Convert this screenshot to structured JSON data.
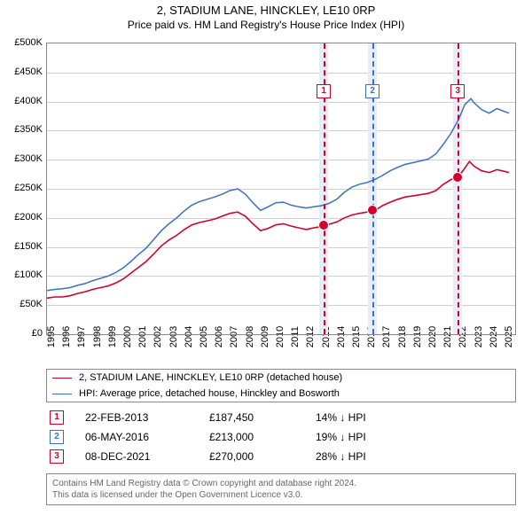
{
  "title": "2, STADIUM LANE, HINCKLEY, LE10 0RP",
  "subtitle": "Price paid vs. HM Land Registry's House Price Index (HPI)",
  "chart": {
    "type": "line",
    "background_color": "#ffffff",
    "grid_color": "#cfcfcf",
    "border_color": "#888888",
    "y_axis": {
      "min": 0,
      "max": 500000,
      "tick_step": 50000,
      "tick_labels": [
        "£0",
        "£50K",
        "£100K",
        "£150K",
        "£200K",
        "£250K",
        "£300K",
        "£350K",
        "£400K",
        "£450K",
        "£500K"
      ],
      "label_fontsize": 11
    },
    "x_axis": {
      "min": 1995,
      "max": 2025.7,
      "ticks": [
        1995,
        1996,
        1997,
        1998,
        1999,
        2000,
        2001,
        2002,
        2003,
        2004,
        2005,
        2006,
        2007,
        2008,
        2009,
        2010,
        2011,
        2012,
        2013,
        2014,
        2015,
        2016,
        2017,
        2018,
        2019,
        2020,
        2021,
        2022,
        2023,
        2024,
        2025
      ],
      "label_fontsize": 11
    },
    "series": [
      {
        "id": "property",
        "label": "2, STADIUM LANE, HINCKLEY, LE10 0RP (detached house)",
        "color": "#d4002a",
        "line_width": 1.6,
        "points": [
          [
            1995,
            62000
          ],
          [
            1995.5,
            64000
          ],
          [
            1996,
            64000
          ],
          [
            1996.5,
            66000
          ],
          [
            1997,
            70000
          ],
          [
            1997.5,
            73000
          ],
          [
            1998,
            77000
          ],
          [
            1998.5,
            80000
          ],
          [
            1999,
            83000
          ],
          [
            1999.5,
            88000
          ],
          [
            2000,
            95000
          ],
          [
            2000.5,
            105000
          ],
          [
            2001,
            115000
          ],
          [
            2001.5,
            125000
          ],
          [
            2002,
            138000
          ],
          [
            2002.5,
            152000
          ],
          [
            2003,
            162000
          ],
          [
            2003.5,
            170000
          ],
          [
            2004,
            180000
          ],
          [
            2004.5,
            188000
          ],
          [
            2005,
            192000
          ],
          [
            2005.5,
            195000
          ],
          [
            2006,
            198000
          ],
          [
            2006.5,
            203000
          ],
          [
            2007,
            208000
          ],
          [
            2007.5,
            210000
          ],
          [
            2008,
            203000
          ],
          [
            2008.5,
            190000
          ],
          [
            2009,
            178000
          ],
          [
            2009.5,
            182000
          ],
          [
            2010,
            188000
          ],
          [
            2010.5,
            190000
          ],
          [
            2011,
            186000
          ],
          [
            2011.5,
            183000
          ],
          [
            2012,
            180000
          ],
          [
            2012.5,
            183000
          ],
          [
            2013,
            185000
          ],
          [
            2013.15,
            187450
          ],
          [
            2013.5,
            189000
          ],
          [
            2014,
            193000
          ],
          [
            2014.5,
            200000
          ],
          [
            2015,
            205000
          ],
          [
            2015.5,
            208000
          ],
          [
            2016,
            210000
          ],
          [
            2016.35,
            213000
          ],
          [
            2016.7,
            216000
          ],
          [
            2017,
            221000
          ],
          [
            2017.5,
            227000
          ],
          [
            2018,
            232000
          ],
          [
            2018.5,
            236000
          ],
          [
            2019,
            238000
          ],
          [
            2019.5,
            240000
          ],
          [
            2020,
            242000
          ],
          [
            2020.5,
            247000
          ],
          [
            2021,
            258000
          ],
          [
            2021.5,
            266000
          ],
          [
            2021.94,
            270000
          ],
          [
            2022.3,
            282000
          ],
          [
            2022.7,
            297000
          ],
          [
            2023,
            289000
          ],
          [
            2023.5,
            281000
          ],
          [
            2024,
            278000
          ],
          [
            2024.5,
            283000
          ],
          [
            2025,
            280000
          ],
          [
            2025.3,
            278000
          ]
        ]
      },
      {
        "id": "hpi",
        "label": "HPI: Average price, detached house, Hinckley and Bosworth",
        "color": "#3b6fc4",
        "line_width": 1.5,
        "points": [
          [
            1995,
            75000
          ],
          [
            1995.5,
            77000
          ],
          [
            1996,
            78000
          ],
          [
            1996.5,
            80000
          ],
          [
            1997,
            84000
          ],
          [
            1997.5,
            87000
          ],
          [
            1998,
            92000
          ],
          [
            1998.5,
            96000
          ],
          [
            1999,
            100000
          ],
          [
            1999.5,
            106000
          ],
          [
            2000,
            114000
          ],
          [
            2000.5,
            125000
          ],
          [
            2001,
            137000
          ],
          [
            2001.5,
            148000
          ],
          [
            2002,
            163000
          ],
          [
            2002.5,
            178000
          ],
          [
            2003,
            190000
          ],
          [
            2003.5,
            200000
          ],
          [
            2004,
            212000
          ],
          [
            2004.5,
            222000
          ],
          [
            2005,
            228000
          ],
          [
            2005.5,
            232000
          ],
          [
            2006,
            236000
          ],
          [
            2006.5,
            241000
          ],
          [
            2007,
            247000
          ],
          [
            2007.5,
            250000
          ],
          [
            2008,
            241000
          ],
          [
            2008.5,
            226000
          ],
          [
            2009,
            213000
          ],
          [
            2009.5,
            219000
          ],
          [
            2010,
            226000
          ],
          [
            2010.5,
            227000
          ],
          [
            2011,
            222000
          ],
          [
            2011.5,
            219000
          ],
          [
            2012,
            217000
          ],
          [
            2012.5,
            219000
          ],
          [
            2013,
            221000
          ],
          [
            2013.5,
            225000
          ],
          [
            2014,
            232000
          ],
          [
            2014.5,
            244000
          ],
          [
            2015,
            253000
          ],
          [
            2015.5,
            258000
          ],
          [
            2016,
            261000
          ],
          [
            2016.5,
            266000
          ],
          [
            2017,
            273000
          ],
          [
            2017.5,
            281000
          ],
          [
            2018,
            287000
          ],
          [
            2018.5,
            292000
          ],
          [
            2019,
            295000
          ],
          [
            2019.5,
            298000
          ],
          [
            2020,
            301000
          ],
          [
            2020.5,
            310000
          ],
          [
            2021,
            327000
          ],
          [
            2021.5,
            346000
          ],
          [
            2022,
            370000
          ],
          [
            2022.4,
            395000
          ],
          [
            2022.8,
            405000
          ],
          [
            2023,
            398000
          ],
          [
            2023.5,
            386000
          ],
          [
            2024,
            380000
          ],
          [
            2024.5,
            388000
          ],
          [
            2025,
            383000
          ],
          [
            2025.3,
            380000
          ]
        ]
      }
    ],
    "sales": [
      {
        "n": "1",
        "marker_color": "#d4002a",
        "year": 2013.15,
        "price": 187450,
        "date": "22-FEB-2013",
        "price_label": "£187,450",
        "diff": "14% ↓ HPI",
        "band_width_yr": 0.6
      },
      {
        "n": "2",
        "marker_color": "#3b6fc4",
        "year": 2016.35,
        "price": 213000,
        "date": "06-MAY-2016",
        "price_label": "£213,000",
        "diff": "19% ↓ HPI",
        "band_width_yr": 0.6
      },
      {
        "n": "3",
        "marker_color": "#d4002a",
        "year": 2021.94,
        "price": 270000,
        "date": "08-DEC-2021",
        "price_label": "£270,000",
        "diff": "28% ↓ HPI",
        "band_width_yr": 0.6
      }
    ],
    "sale_band_color": "#e6edf7",
    "sale_box_top_y": 430000
  },
  "legend": {
    "border_color": "#888888",
    "fontsize": 11
  },
  "footer": {
    "line1": "Contains HM Land Registry data © Crown copyright and database right 2024.",
    "line2": "This data is licensed under the Open Government Licence v3.0.",
    "color": "#666666"
  }
}
